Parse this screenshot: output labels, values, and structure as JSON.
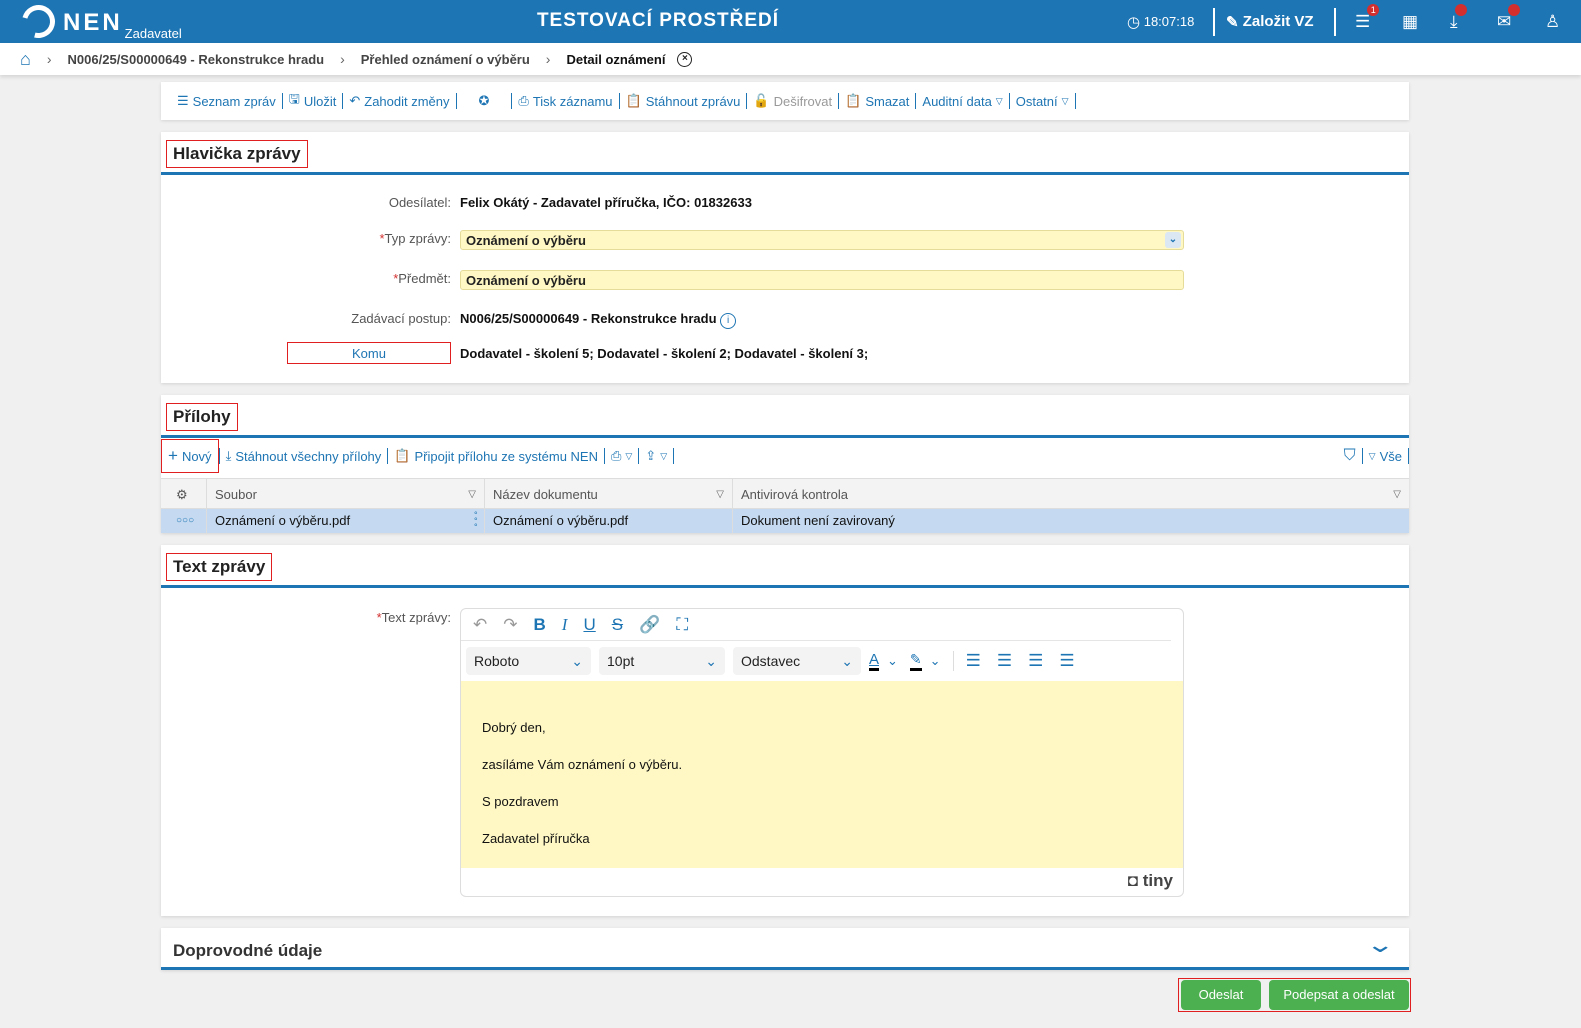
{
  "header": {
    "logo": "NEN",
    "logo_sub": "Zadavatel",
    "environment": "TESTOVACÍ PROSTŘEDÍ",
    "time": "18:07:18",
    "create_label": "Založit VZ",
    "menu_badge": "1",
    "colors": {
      "brand": "#1e75b3",
      "badge": "#d32f2f"
    }
  },
  "breadcrumb": {
    "items": [
      "N006/25/S00000649 - Rekonstrukce hradu",
      "Přehled oznámení o výběru",
      "Detail oznámení"
    ]
  },
  "toolbar": {
    "items": [
      "Seznam zpráv",
      "Uložit",
      "Zahodit změny",
      "Tisk záznamu",
      "Stáhnout zprávu",
      "Dešifrovat",
      "Smazat",
      "Auditní data",
      "Ostatní"
    ]
  },
  "header_section": {
    "title": "Hlavička zprávy",
    "sender_label": "Odesílatel:",
    "sender": "Felix Okátý - Zadavatel příručka, IČO: 01832633",
    "type_label": "Typ zprávy:",
    "type_value": "Oznámení o výběru",
    "subject_label": "Předmět:",
    "subject_value": "Oznámení o výběru",
    "procedure_label": "Zadávací postup:",
    "procedure": "N006/25/S00000649 - Rekonstrukce hradu",
    "to_button": "Komu",
    "to_value": "Dodavatel - školení 5; Dodavatel - školení 2; Dodavatel - školení 3;"
  },
  "attachments": {
    "title": "Přílohy",
    "new_label": "Nový",
    "download_all": "Stáhnout všechny přílohy",
    "attach_nen": "Připojit přílohu ze systému NEN",
    "filter_all": "Vše",
    "columns": [
      "Soubor",
      "Název dokumentu",
      "Antivirová kontrola"
    ],
    "rows": [
      {
        "file": "Oznámení o výběru.pdf",
        "name": "Oznámení o výběru.pdf",
        "antivirus": "Dokument není zavirovaný"
      }
    ]
  },
  "message": {
    "title": "Text zprávy",
    "label": "Text zprávy:",
    "font": "Roboto",
    "size": "10pt",
    "block": "Odstavec",
    "paragraphs": [
      "Dobrý den,",
      "zasíláme Vám oznámení o výběru.",
      "S pozdravem",
      "Zadavatel příručka"
    ],
    "branding": "tiny"
  },
  "accompanying": {
    "title": "Doprovodné údaje"
  },
  "actions": {
    "send": "Odeslat",
    "sign_send": "Podepsat a odeslat",
    "color": "#4caf50"
  }
}
